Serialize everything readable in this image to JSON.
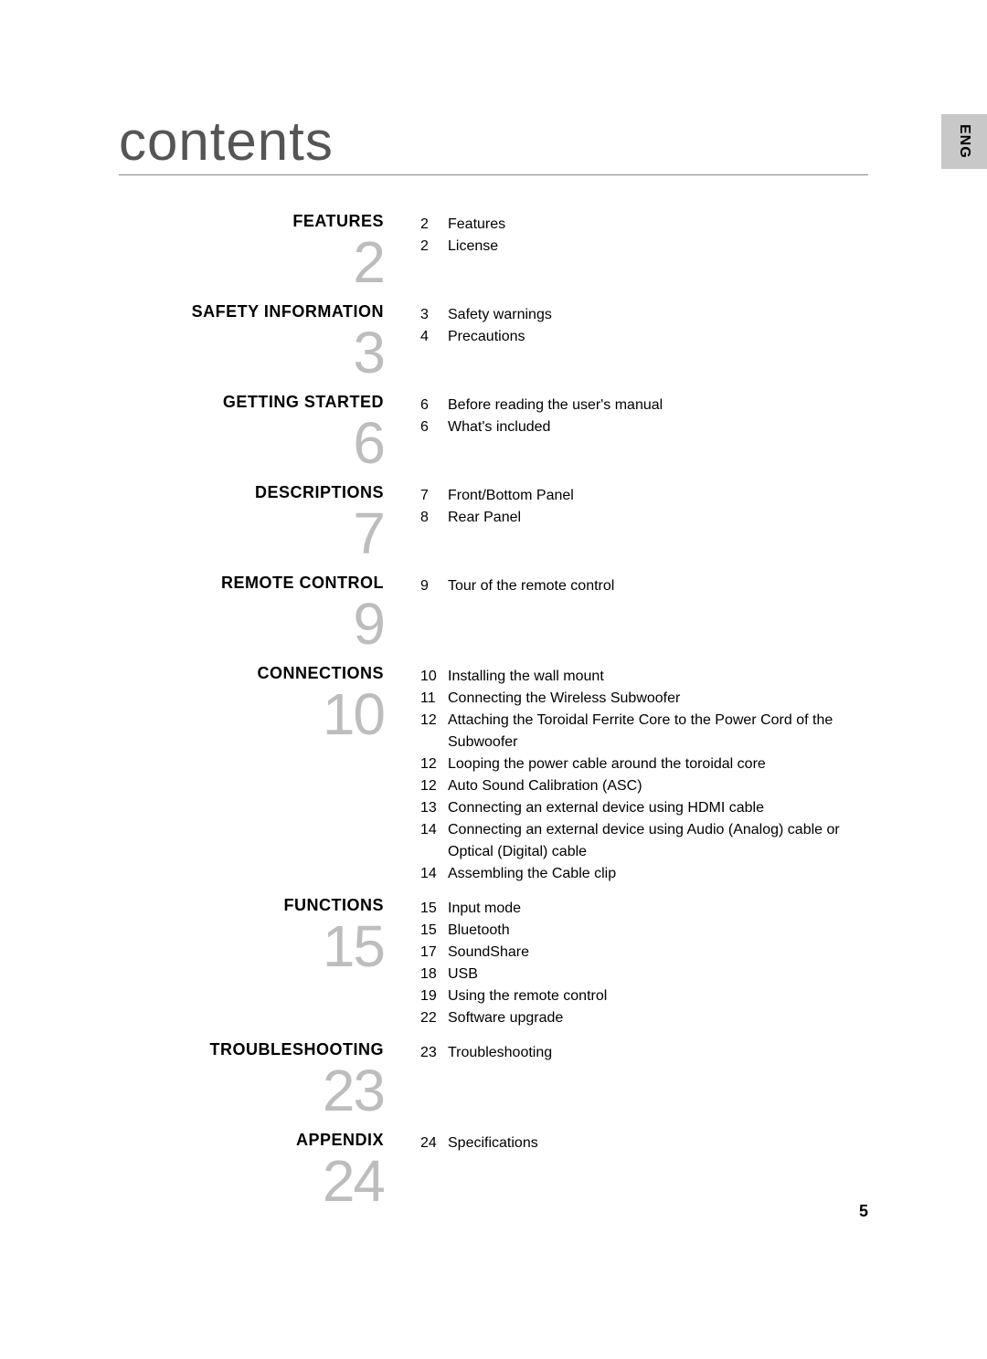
{
  "title": "contents",
  "lang_tab": "ENG",
  "page_number": "5",
  "colors": {
    "background": "#ffffff",
    "text": "#000000",
    "title_color": "#555555",
    "big_num_color": "#bdbdbd",
    "tab_bg": "#c8c8c8",
    "rule": "#888888"
  },
  "fonts": {
    "title_size_pt": 45,
    "heading_size_pt": 14,
    "body_size_pt": 12,
    "big_num_size_pt": 48
  },
  "sections": [
    {
      "heading": "FEATURES",
      "big_number": "2",
      "entries": [
        {
          "page": "2",
          "text": "Features"
        },
        {
          "page": "2",
          "text": "License"
        }
      ]
    },
    {
      "heading": "SAFETY INFORMATION",
      "big_number": "3",
      "entries": [
        {
          "page": "3",
          "text": "Safety warnings"
        },
        {
          "page": "4",
          "text": "Precautions"
        }
      ]
    },
    {
      "heading": "GETTING STARTED",
      "big_number": "6",
      "entries": [
        {
          "page": "6",
          "text": "Before reading the user's manual"
        },
        {
          "page": "6",
          "text": "What's included"
        }
      ]
    },
    {
      "heading": "DESCRIPTIONS",
      "big_number": "7",
      "entries": [
        {
          "page": "7",
          "text": "Front/Bottom Panel"
        },
        {
          "page": "8",
          "text": "Rear Panel"
        }
      ]
    },
    {
      "heading": "REMOTE CONTROL",
      "big_number": "9",
      "entries": [
        {
          "page": "9",
          "text": "Tour of the remote control"
        }
      ]
    },
    {
      "heading": "CONNECTIONS",
      "big_number": "10",
      "entries": [
        {
          "page": "10",
          "text": "Installing the wall mount"
        },
        {
          "page": "11",
          "text": "Connecting the Wireless Subwoofer"
        },
        {
          "page": "12",
          "text": "Attaching the Toroidal Ferrite Core to the Power Cord of the Subwoofer"
        },
        {
          "page": "12",
          "text": "Looping the power cable around the toroidal core"
        },
        {
          "page": "12",
          "text": "Auto Sound Calibration (ASC)"
        },
        {
          "page": "13",
          "text": "Connecting an external device using HDMI cable"
        },
        {
          "page": "14",
          "text": "Connecting an external device using Audio (Analog) cable or Optical (Digital) cable"
        },
        {
          "page": "14",
          "text": "Assembling the Cable clip"
        }
      ]
    },
    {
      "heading": "FUNCTIONS",
      "big_number": "15",
      "entries": [
        {
          "page": "15",
          "text": "Input mode"
        },
        {
          "page": "15",
          "text": "Bluetooth"
        },
        {
          "page": "17",
          "text": "SoundShare"
        },
        {
          "page": "18",
          "text": "USB"
        },
        {
          "page": "19",
          "text": "Using the remote control"
        },
        {
          "page": "22",
          "text": "Software upgrade"
        }
      ]
    },
    {
      "heading": "TROUBLESHOOTING",
      "big_number": "23",
      "entries": [
        {
          "page": "23",
          "text": "Troubleshooting"
        }
      ]
    },
    {
      "heading": "APPENDIX",
      "big_number": "24",
      "entries": [
        {
          "page": "24",
          "text": "Specifications"
        }
      ]
    }
  ]
}
